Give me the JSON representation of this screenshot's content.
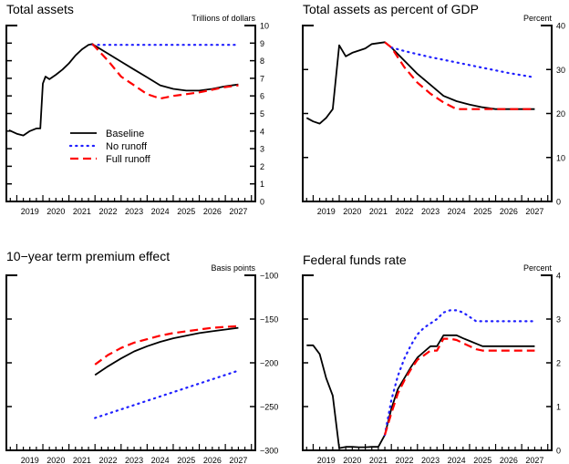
{
  "colors": {
    "baseline": "#000000",
    "no_runoff": "#1f1fff",
    "full_runoff": "#ff0000"
  },
  "legend": [
    {
      "key": "baseline",
      "label": "Baseline",
      "style": "solid"
    },
    {
      "key": "no_runoff",
      "label": "No runoff",
      "style": "dotted"
    },
    {
      "key": "full_runoff",
      "label": "Full runoff",
      "style": "dashed"
    }
  ],
  "chart_data": [
    {
      "type": "line",
      "title": "Total assets",
      "ylabel": "Trillions of dollars",
      "xlabel": "",
      "xlim": [
        2018.6,
        2028.15
      ],
      "ylim": [
        0,
        10
      ],
      "yticks": [
        0,
        1,
        2,
        3,
        4,
        5,
        6,
        7,
        8,
        9,
        10
      ],
      "xtick_labels": [
        "2019",
        "2020",
        "2021",
        "2022",
        "2023",
        "2024",
        "2025",
        "2026",
        "2027"
      ],
      "legend_position": "center-left",
      "series": [
        {
          "name": "Baseline",
          "key": "baseline",
          "x": [
            2018.7,
            2019.0,
            2019.25,
            2019.5,
            2019.75,
            2019.9,
            2020.0,
            2020.1,
            2020.25,
            2020.5,
            2020.75,
            2021.0,
            2021.25,
            2021.5,
            2021.75,
            2021.9,
            2022.0,
            2022.5,
            2023.0,
            2023.5,
            2024.0,
            2024.5,
            2025.0,
            2025.5,
            2026.0,
            2026.5,
            2027.0,
            2027.5
          ],
          "values": [
            4.05,
            3.85,
            3.75,
            4.0,
            4.15,
            4.15,
            6.7,
            7.1,
            6.95,
            7.2,
            7.5,
            7.85,
            8.3,
            8.65,
            8.9,
            8.95,
            8.85,
            8.4,
            7.95,
            7.5,
            7.05,
            6.6,
            6.4,
            6.3,
            6.3,
            6.4,
            6.55,
            6.65
          ]
        },
        {
          "name": "No runoff",
          "key": "no_runoff",
          "x": [
            2021.9,
            2027.5
          ],
          "values": [
            8.9,
            8.9
          ]
        },
        {
          "name": "Full runoff",
          "key": "full_runoff",
          "x": [
            2021.9,
            2022.5,
            2023.0,
            2023.5,
            2024.0,
            2024.5,
            2025.0,
            2025.5,
            2026.0,
            2026.5,
            2027.0,
            2027.5
          ],
          "values": [
            8.95,
            8.0,
            7.1,
            6.6,
            6.1,
            5.85,
            6.0,
            6.1,
            6.2,
            6.35,
            6.5,
            6.6
          ]
        }
      ]
    },
    {
      "type": "line",
      "title": "Total assets as percent of GDP",
      "ylabel": "Percent",
      "xlabel": "",
      "xlim": [
        2018.6,
        2028.15
      ],
      "ylim": [
        0,
        40
      ],
      "yticks": [
        0,
        10,
        20,
        30,
        40
      ],
      "xtick_labels": [
        "2019",
        "2020",
        "2021",
        "2022",
        "2023",
        "2024",
        "2025",
        "2026",
        "2027"
      ],
      "series": [
        {
          "name": "Baseline",
          "key": "baseline",
          "x": [
            2018.75,
            2019.0,
            2019.25,
            2019.5,
            2019.75,
            2020.0,
            2020.25,
            2020.5,
            2020.75,
            2021.0,
            2021.25,
            2021.5,
            2021.75,
            2022.0,
            2022.5,
            2023.0,
            2023.5,
            2024.0,
            2024.5,
            2025.0,
            2025.5,
            2026.0,
            2026.5,
            2027.0,
            2027.5
          ],
          "values": [
            19.0,
            18.2,
            17.7,
            19.0,
            21.0,
            35.5,
            33.0,
            33.8,
            34.3,
            34.8,
            35.8,
            36.0,
            36.2,
            35.0,
            32.0,
            29.0,
            26.5,
            24.0,
            22.8,
            22.0,
            21.4,
            21.0,
            21.0,
            21.0,
            21.0
          ]
        },
        {
          "name": "No runoff",
          "key": "no_runoff",
          "x": [
            2022.0,
            2022.5,
            2023.0,
            2023.5,
            2024.0,
            2024.5,
            2025.0,
            2025.5,
            2026.0,
            2026.5,
            2027.0,
            2027.5
          ],
          "values": [
            35.0,
            34.2,
            33.5,
            32.8,
            32.2,
            31.6,
            31.0,
            30.4,
            29.8,
            29.2,
            28.7,
            28.2
          ]
        },
        {
          "name": "Full runoff",
          "key": "full_runoff",
          "x": [
            2021.75,
            2022.0,
            2022.5,
            2023.0,
            2023.5,
            2024.0,
            2024.5,
            2025.0,
            2025.5,
            2026.0,
            2026.5,
            2027.0,
            2027.5
          ],
          "values": [
            36.2,
            35.0,
            30.5,
            27.0,
            24.5,
            22.5,
            21.0,
            21.0,
            21.0,
            21.0,
            21.0,
            21.0,
            21.0
          ]
        }
      ]
    },
    {
      "type": "line",
      "title": "10−year term premium effect",
      "ylabel": "Basis points",
      "xlabel": "",
      "xlim": [
        2018.6,
        2028.15
      ],
      "ylim": [
        -300,
        -100
      ],
      "yticks": [
        -300,
        -250,
        -200,
        -150,
        -100
      ],
      "ytick_labels": [
        "−300",
        "−250",
        "−200",
        "−150",
        "−100"
      ],
      "xtick_labels": [
        "2019",
        "2020",
        "2021",
        "2022",
        "2023",
        "2024",
        "2025",
        "2026",
        "2027"
      ],
      "series": [
        {
          "name": "Baseline",
          "key": "baseline",
          "x": [
            2022.0,
            2022.5,
            2023.0,
            2023.5,
            2024.0,
            2024.5,
            2025.0,
            2025.5,
            2026.0,
            2026.5,
            2027.0,
            2027.5
          ],
          "values": [
            -214,
            -204,
            -195,
            -187,
            -181,
            -176,
            -172,
            -169,
            -166,
            -164,
            -162,
            -160
          ]
        },
        {
          "name": "No runoff",
          "key": "no_runoff",
          "x": [
            2022.0,
            2027.5
          ],
          "values": [
            -263,
            -209
          ]
        },
        {
          "name": "Full runoff",
          "key": "full_runoff",
          "x": [
            2022.0,
            2022.5,
            2023.0,
            2023.5,
            2024.0,
            2024.5,
            2025.0,
            2025.5,
            2026.0,
            2026.5,
            2027.0,
            2027.5
          ],
          "values": [
            -202,
            -191,
            -183,
            -177,
            -173,
            -169,
            -166,
            -164,
            -162,
            -160,
            -159,
            -158
          ]
        }
      ]
    },
    {
      "type": "line",
      "title": "Federal funds rate",
      "ylabel": "Percent",
      "xlabel": "",
      "xlim": [
        2018.6,
        2028.15
      ],
      "ylim": [
        0,
        4
      ],
      "yticks": [
        0,
        1,
        2,
        3,
        4
      ],
      "xtick_labels": [
        "2019",
        "2020",
        "2021",
        "2022",
        "2023",
        "2024",
        "2025",
        "2026",
        "2027"
      ],
      "series": [
        {
          "name": "Baseline",
          "key": "baseline",
          "x": [
            2018.75,
            2019.0,
            2019.25,
            2019.5,
            2019.75,
            2020.0,
            2020.25,
            2020.5,
            2020.75,
            2021.0,
            2021.25,
            2021.5,
            2021.75,
            2022.0,
            2022.25,
            2022.5,
            2022.75,
            2023.0,
            2023.25,
            2023.5,
            2023.75,
            2024.0,
            2024.25,
            2024.5,
            2024.75,
            2025.0,
            2025.25,
            2025.5,
            2026.0,
            2026.5,
            2027.0,
            2027.5
          ],
          "values": [
            2.4,
            2.4,
            2.2,
            1.65,
            1.25,
            0.05,
            0.08,
            0.08,
            0.07,
            0.07,
            0.08,
            0.08,
            0.35,
            0.95,
            1.4,
            1.65,
            1.9,
            2.12,
            2.25,
            2.38,
            2.38,
            2.63,
            2.63,
            2.63,
            2.56,
            2.5,
            2.44,
            2.38,
            2.38,
            2.38,
            2.38,
            2.38
          ]
        },
        {
          "name": "No runoff",
          "key": "no_runoff",
          "x": [
            2021.75,
            2022.0,
            2022.25,
            2022.5,
            2022.75,
            2023.0,
            2023.25,
            2023.5,
            2023.75,
            2024.0,
            2024.25,
            2024.5,
            2024.75,
            2025.0,
            2025.25,
            2025.5,
            2026.0,
            2026.5,
            2027.0,
            2027.5
          ],
          "values": [
            0.35,
            1.15,
            1.7,
            2.1,
            2.4,
            2.65,
            2.8,
            2.9,
            3.0,
            3.15,
            3.2,
            3.2,
            3.15,
            3.05,
            2.95,
            2.95,
            2.95,
            2.95,
            2.95,
            2.95
          ]
        },
        {
          "name": "Full runoff",
          "key": "full_runoff",
          "x": [
            2021.75,
            2022.0,
            2022.25,
            2022.5,
            2022.75,
            2023.0,
            2023.25,
            2023.5,
            2023.75,
            2024.0,
            2024.25,
            2024.5,
            2024.75,
            2025.0,
            2025.25,
            2025.5,
            2026.0,
            2026.5,
            2027.0,
            2027.5
          ],
          "values": [
            0.35,
            0.85,
            1.3,
            1.6,
            1.85,
            2.07,
            2.17,
            2.28,
            2.28,
            2.55,
            2.55,
            2.52,
            2.45,
            2.38,
            2.31,
            2.28,
            2.28,
            2.28,
            2.28,
            2.28
          ]
        }
      ]
    }
  ]
}
